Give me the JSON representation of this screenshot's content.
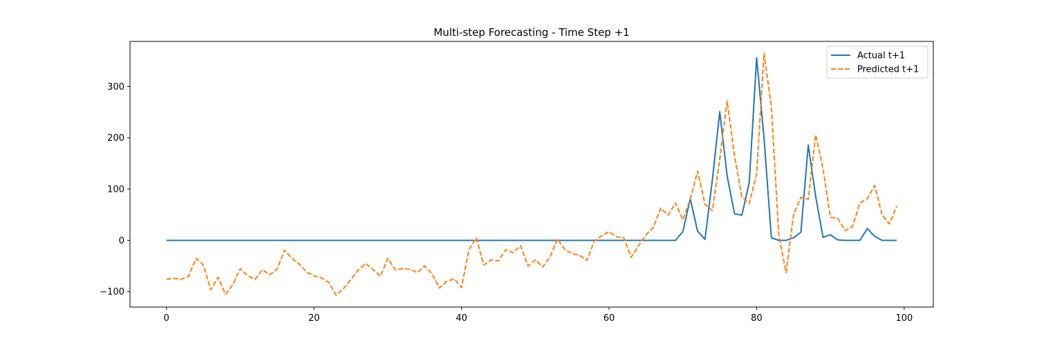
{
  "chart_data": {
    "type": "line",
    "title": "Multi-step Forecasting - Time Step +1",
    "xlabel": "",
    "ylabel": "",
    "xlim": [
      -4.95,
      103.95
    ],
    "ylim": [
      -130,
      388
    ],
    "xticks": [
      0,
      20,
      40,
      60,
      80,
      100
    ],
    "yticks": [
      -100,
      0,
      100,
      200,
      300
    ],
    "grid": false,
    "legend": "top-right",
    "series": [
      {
        "name": "Actual t+1",
        "color": "#1f77b4",
        "style": "solid",
        "x": [
          0,
          1,
          2,
          3,
          4,
          5,
          6,
          7,
          8,
          9,
          10,
          11,
          12,
          13,
          14,
          15,
          16,
          17,
          18,
          19,
          20,
          21,
          22,
          23,
          24,
          25,
          26,
          27,
          28,
          29,
          30,
          31,
          32,
          33,
          34,
          35,
          36,
          37,
          38,
          39,
          40,
          41,
          42,
          43,
          44,
          45,
          46,
          47,
          48,
          49,
          50,
          51,
          52,
          53,
          54,
          55,
          56,
          57,
          58,
          59,
          60,
          61,
          62,
          63,
          64,
          65,
          66,
          67,
          68,
          69,
          70,
          71,
          72,
          73,
          74,
          75,
          76,
          77,
          78,
          79,
          80,
          81,
          82,
          83,
          84,
          85,
          86,
          87,
          88,
          89,
          90,
          91,
          92,
          93,
          94,
          95,
          96,
          97,
          98,
          99
        ],
        "values": [
          0,
          0,
          0,
          0,
          0,
          0,
          0,
          0,
          0,
          0,
          0,
          0,
          0,
          0,
          0,
          0,
          0,
          0,
          0,
          0,
          0,
          0,
          0,
          0,
          0,
          0,
          0,
          0,
          0,
          0,
          0,
          0,
          0,
          0,
          0,
          0,
          0,
          0,
          0,
          0,
          0,
          0,
          0,
          0,
          0,
          0,
          0,
          0,
          0,
          0,
          0,
          0,
          0,
          0,
          0,
          0,
          0,
          0,
          0,
          0,
          0,
          0,
          0,
          0,
          0,
          0,
          0,
          0,
          0,
          0,
          17,
          81,
          18,
          2,
          118,
          251,
          126,
          52,
          49,
          113,
          356,
          200,
          5,
          0,
          0,
          5,
          16,
          186,
          86,
          6,
          11,
          1,
          0,
          0,
          0,
          23,
          8,
          0,
          0,
          0
        ]
      },
      {
        "name": "Predicted t+1",
        "color": "#ff7f0e",
        "style": "dashed",
        "x": [
          0,
          1,
          2,
          3,
          4,
          5,
          6,
          7,
          8,
          9,
          10,
          11,
          12,
          13,
          14,
          15,
          16,
          17,
          18,
          19,
          20,
          21,
          22,
          23,
          24,
          25,
          26,
          27,
          28,
          29,
          30,
          31,
          32,
          33,
          34,
          35,
          36,
          37,
          38,
          39,
          40,
          41,
          42,
          43,
          44,
          45,
          46,
          47,
          48,
          49,
          50,
          51,
          52,
          53,
          54,
          55,
          56,
          57,
          58,
          59,
          60,
          61,
          62,
          63,
          64,
          65,
          66,
          67,
          68,
          69,
          70,
          71,
          72,
          73,
          74,
          75,
          76,
          77,
          78,
          79,
          80,
          81,
          82,
          83,
          84,
          85,
          86,
          87,
          88,
          89,
          90,
          91,
          92,
          93,
          94,
          95,
          96,
          97,
          98,
          99
        ],
        "values": [
          -76,
          -74,
          -76,
          -70,
          -35,
          -48,
          -96,
          -72,
          -105,
          -86,
          -55,
          -69,
          -76,
          -57,
          -67,
          -56,
          -19,
          -35,
          -46,
          -62,
          -69,
          -73,
          -82,
          -107,
          -94,
          -76,
          -58,
          -45,
          -57,
          -70,
          -35,
          -57,
          -55,
          -56,
          -63,
          -50,
          -65,
          -93,
          -80,
          -75,
          -92,
          -18,
          5,
          -48,
          -38,
          -40,
          -18,
          -24,
          -10,
          -50,
          -38,
          -52,
          -32,
          3,
          -18,
          -26,
          -29,
          -39,
          -1,
          9,
          17,
          7,
          5,
          -33,
          -10,
          11,
          25,
          63,
          49,
          73,
          40,
          80,
          135,
          70,
          58,
          158,
          272,
          165,
          85,
          72,
          130,
          365,
          260,
          10,
          -63,
          50,
          84,
          80,
          206,
          140,
          45,
          43,
          19,
          27,
          73,
          81,
          107,
          50,
          32,
          67
        ]
      }
    ]
  }
}
